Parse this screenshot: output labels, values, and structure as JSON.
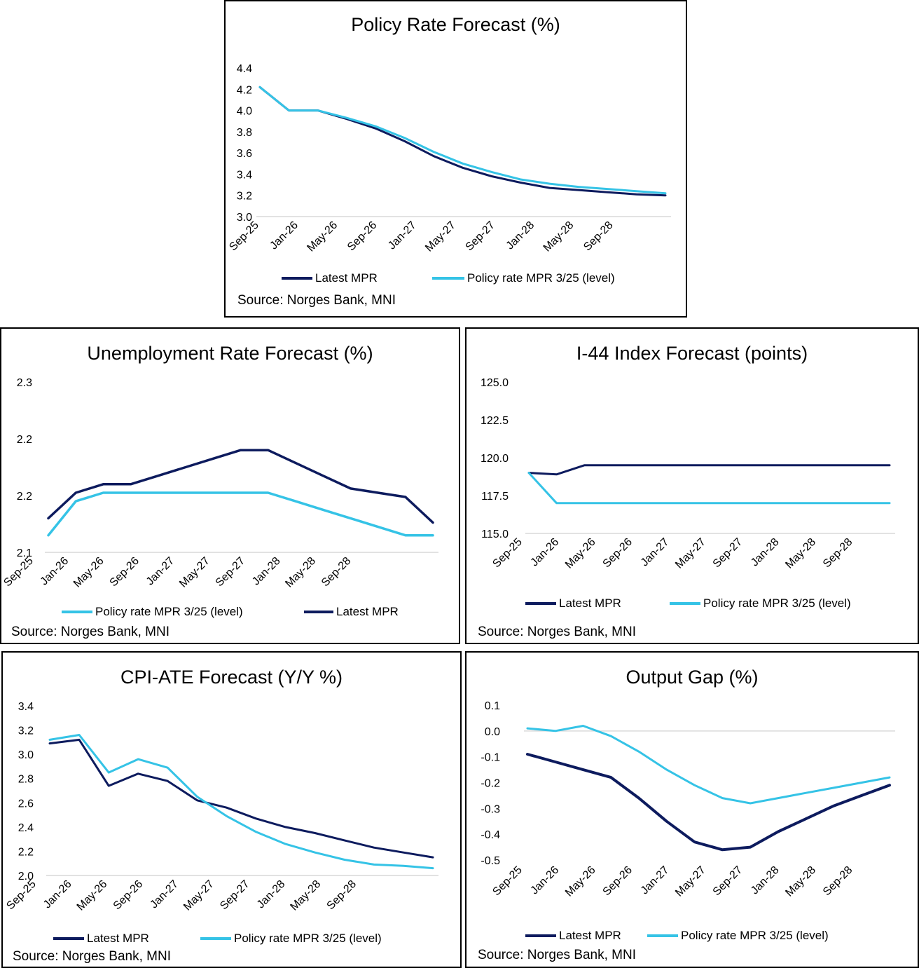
{
  "colors": {
    "latest": "#0d1b5e",
    "policy": "#35c3e6",
    "grid": "#d9d9d9"
  },
  "panels": {
    "policy": {
      "title": "Policy Rate Forecast (%)",
      "source": "Source: Norges Bank, MNI",
      "legend": [
        "Latest MPR",
        "Policy rate MPR 3/25 (level)"
      ]
    },
    "unemp": {
      "title": "Unemployment Rate Forecast (%)",
      "source": "Source: Norges Bank, MNI",
      "legend": [
        "Policy rate MPR 3/25 (level)",
        "Latest MPR"
      ]
    },
    "i44": {
      "title": "I-44 Index Forecast (points)",
      "source": "Source: Norges Bank, MNI",
      "legend": [
        "Latest MPR",
        "Policy rate MPR 3/25 (level)"
      ]
    },
    "cpi": {
      "title": "CPI-ATE Forecast (Y/Y %)",
      "source": "Source: Norges Bank, MNI",
      "legend": [
        "Latest MPR",
        "Policy rate MPR 3/25 (level)"
      ]
    },
    "gap": {
      "title": "Output Gap (%)",
      "source": "Source: Norges Bank, MNI",
      "legend": [
        "Latest MPR",
        "Policy rate MPR 3/25 (level)"
      ]
    }
  },
  "chart_data": [
    {
      "id": "policy",
      "type": "line",
      "title": "Policy Rate Forecast (%)",
      "x_ticks": [
        "Sep-25",
        "Jan-26",
        "May-26",
        "Sep-26",
        "Jan-27",
        "May-27",
        "Sep-27",
        "Jan-28",
        "May-28",
        "Sep-28"
      ],
      "ylim": [
        3.0,
        4.4
      ],
      "yticks": [
        "3.0",
        "3.2",
        "3.4",
        "3.6",
        "3.8",
        "4.0",
        "4.2",
        "4.4"
      ],
      "n_points": 15,
      "series": [
        {
          "name": "Latest MPR",
          "values": [
            4.22,
            4.0,
            4.0,
            3.92,
            3.83,
            3.71,
            3.57,
            3.46,
            3.38,
            3.32,
            3.27,
            3.25,
            3.23,
            3.21,
            3.2
          ]
        },
        {
          "name": "Policy rate MPR 3/25 (level)",
          "values": [
            4.22,
            4.0,
            4.0,
            3.93,
            3.85,
            3.74,
            3.61,
            3.5,
            3.42,
            3.35,
            3.31,
            3.28,
            3.26,
            3.24,
            3.22
          ]
        }
      ]
    },
    {
      "id": "unemp",
      "type": "line",
      "title": "Unemployment Rate Forecast (%)",
      "x_ticks": [
        "Sep-25",
        "Jan-26",
        "May-26",
        "Sep-26",
        "Jan-27",
        "May-27",
        "Sep-27",
        "Jan-28",
        "May-28",
        "Sep-28"
      ],
      "ylim": [
        2.1,
        2.3
      ],
      "yticks": [
        "2.1",
        "2.2",
        "2.2",
        "2.3"
      ],
      "n_points": 15,
      "series": [
        {
          "name": "Policy rate MPR 3/25 (level)",
          "values": [
            2.12,
            2.16,
            2.17,
            2.17,
            2.17,
            2.17,
            2.17,
            2.17,
            2.17,
            2.16,
            2.15,
            2.14,
            2.13,
            2.12,
            2.12
          ]
        },
        {
          "name": "Latest MPR",
          "values": [
            2.14,
            2.17,
            2.18,
            2.18,
            2.19,
            2.2,
            2.21,
            2.22,
            2.22,
            2.205,
            2.19,
            2.175,
            2.17,
            2.165,
            2.135
          ]
        }
      ]
    },
    {
      "id": "i44",
      "type": "line",
      "title": "I-44 Index Forecast (points)",
      "x_ticks": [
        "Sep-25",
        "Jan-26",
        "May-26",
        "Sep-26",
        "Jan-27",
        "May-27",
        "Sep-27",
        "Jan-28",
        "May-28",
        "Sep-28"
      ],
      "ylim": [
        115.0,
        125.0
      ],
      "yticks": [
        "115.0",
        "117.5",
        "120.0",
        "122.5",
        "125.0"
      ],
      "n_points": 14,
      "series": [
        {
          "name": "Latest MPR",
          "values": [
            119.0,
            118.9,
            119.5,
            119.5,
            119.5,
            119.5,
            119.5,
            119.5,
            119.5,
            119.5,
            119.5,
            119.5,
            119.5,
            119.5
          ]
        },
        {
          "name": "Policy rate MPR 3/25 (level)",
          "values": [
            119.0,
            117.0,
            117.0,
            117.0,
            117.0,
            117.0,
            117.0,
            117.0,
            117.0,
            117.0,
            117.0,
            117.0,
            117.0,
            117.0
          ]
        }
      ]
    },
    {
      "id": "cpi",
      "type": "line",
      "title": "CPI-ATE Forecast (Y/Y %)",
      "x_ticks": [
        "Sep-25",
        "Jan-26",
        "May-26",
        "Sep-26",
        "Jan-27",
        "May-27",
        "Sep-27",
        "Jan-28",
        "May-28",
        "Sep-28"
      ],
      "ylim": [
        2.0,
        3.4
      ],
      "yticks": [
        "2.0",
        "2.2",
        "2.4",
        "2.6",
        "2.8",
        "3.0",
        "3.2",
        "3.4"
      ],
      "n_points": 14,
      "series": [
        {
          "name": "Latest MPR",
          "values": [
            3.09,
            3.12,
            2.74,
            2.84,
            2.78,
            2.62,
            2.56,
            2.47,
            2.4,
            2.35,
            2.29,
            2.23,
            2.19,
            2.15
          ]
        },
        {
          "name": "Policy rate MPR 3/25 (level)",
          "values": [
            3.12,
            3.16,
            2.85,
            2.96,
            2.89,
            2.65,
            2.49,
            2.36,
            2.26,
            2.19,
            2.13,
            2.09,
            2.08,
            2.06
          ]
        }
      ]
    },
    {
      "id": "gap",
      "type": "line",
      "title": "Output Gap (%)",
      "x_ticks": [
        "Sep-25",
        "Jan-26",
        "May-26",
        "Sep-26",
        "Jan-27",
        "May-27",
        "Sep-27",
        "Jan-28",
        "May-28",
        "Sep-28"
      ],
      "ylim": [
        -0.5,
        0.1
      ],
      "yticks": [
        "-0.5",
        "-0.4",
        "-0.3",
        "-0.2",
        "-0.1",
        "0.0",
        "0.1"
      ],
      "n_points": 14,
      "series": [
        {
          "name": "Latest MPR",
          "values": [
            -0.09,
            -0.12,
            -0.15,
            -0.18,
            -0.26,
            -0.35,
            -0.43,
            -0.46,
            -0.45,
            -0.39,
            -0.34,
            -0.29,
            -0.25,
            -0.21
          ]
        },
        {
          "name": "Policy rate MPR 3/25 (level)",
          "values": [
            0.01,
            0.0,
            0.02,
            -0.02,
            -0.08,
            -0.15,
            -0.21,
            -0.26,
            -0.28,
            -0.26,
            -0.24,
            -0.22,
            -0.2,
            -0.18
          ]
        }
      ]
    }
  ]
}
